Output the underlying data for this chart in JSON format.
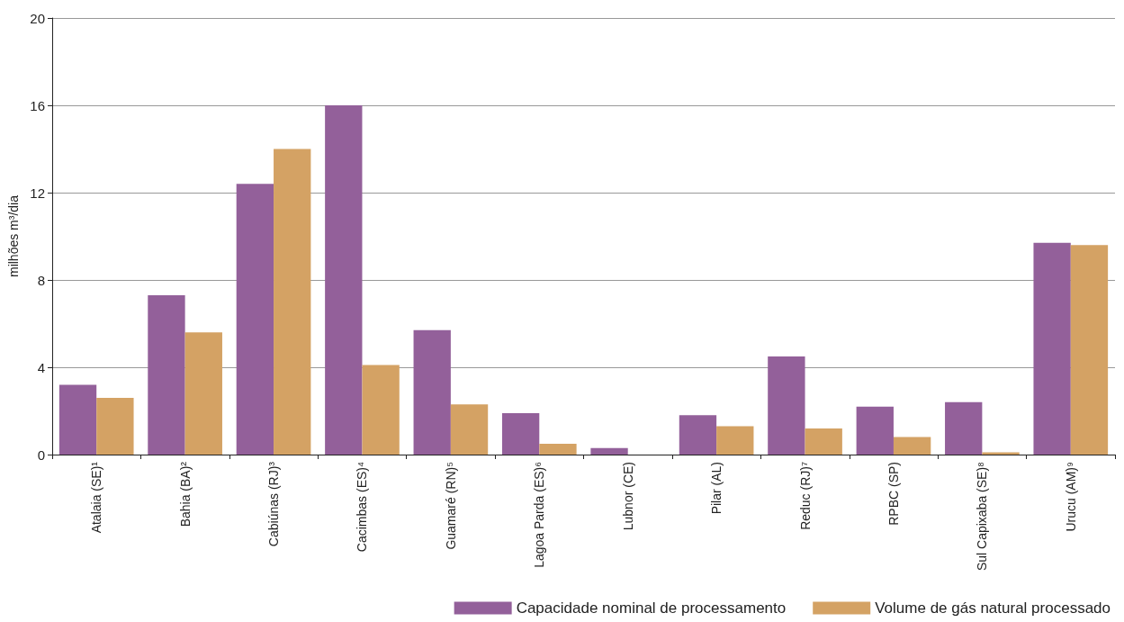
{
  "chart_data": {
    "type": "bar",
    "ylabel": "milhões m³/dia",
    "categories": [
      "Atalaia (SE)¹",
      "Bahia (BA)²",
      "Cabiúnas (RJ)³",
      "Cacimbas (ES)⁴",
      "Guamaré (RN)⁵",
      "Lagoa Parda (ES)⁶",
      "Lubnor (CE)",
      "Pilar (AL)",
      "Reduc (RJ)⁷",
      "RPBC (SP)",
      "Sul Capixaba (SE)⁸",
      "Urucu (AM)⁹"
    ],
    "series": [
      {
        "name": "Capacidade nominal de processamento",
        "color": "#93609a",
        "values": [
          3.2,
          7.3,
          12.4,
          16.0,
          5.7,
          1.9,
          0.3,
          1.8,
          4.5,
          2.2,
          2.4,
          9.7
        ]
      },
      {
        "name": "Volume de gás natural processado",
        "color": "#d4a264",
        "values": [
          2.6,
          5.6,
          14.0,
          4.1,
          2.3,
          0.5,
          0,
          1.3,
          1.2,
          0.8,
          0.1,
          9.6
        ]
      }
    ],
    "ylim": [
      0,
      20
    ],
    "yticks": [
      0,
      4,
      8,
      12,
      16,
      20
    ],
    "grid": "y",
    "legend": "bottom right"
  }
}
